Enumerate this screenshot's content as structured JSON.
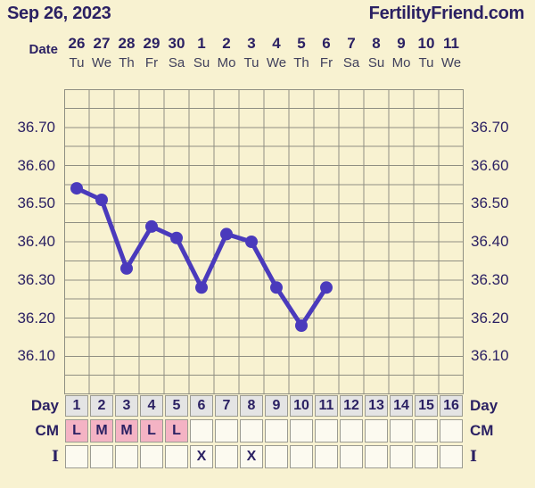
{
  "header": {
    "date": "Sep 26, 2023",
    "brand": "FertilityFriend.com"
  },
  "date_row": {
    "label": "Date",
    "dates": [
      "26",
      "27",
      "28",
      "29",
      "30",
      "1",
      "2",
      "3",
      "4",
      "5",
      "6",
      "7",
      "8",
      "9",
      "10",
      "11"
    ],
    "weekdays": [
      "Tu",
      "We",
      "Th",
      "Fr",
      "Sa",
      "Su",
      "Mo",
      "Tu",
      "We",
      "Th",
      "Fr",
      "Sa",
      "Su",
      "Mo",
      "Tu",
      "We"
    ]
  },
  "chart_data": {
    "type": "line",
    "x": [
      1,
      2,
      3,
      4,
      5,
      6,
      7,
      8,
      9,
      10,
      11
    ],
    "values": [
      36.54,
      36.51,
      36.33,
      36.44,
      36.41,
      36.28,
      36.42,
      36.4,
      36.28,
      36.18,
      36.28
    ],
    "xlabel": "Day",
    "ylabel": "",
    "ylim": [
      36.0,
      36.8
    ],
    "y_gridline_step": 0.05,
    "y_tick_labels": [
      "36.70",
      "36.60",
      "36.50",
      "36.40",
      "36.30",
      "36.20",
      "36.10"
    ],
    "x_columns": 16,
    "grid": true,
    "legend": "none",
    "marker": "circle"
  },
  "table": {
    "day": {
      "label": "Day",
      "values": [
        "1",
        "2",
        "3",
        "4",
        "5",
        "6",
        "7",
        "8",
        "9",
        "10",
        "11",
        "12",
        "13",
        "14",
        "15",
        "16"
      ]
    },
    "cm": {
      "label": "CM",
      "values": [
        "L",
        "M",
        "M",
        "L",
        "L",
        "",
        "",
        "",
        "",
        "",
        "",
        "",
        "",
        "",
        "",
        ""
      ]
    },
    "i": {
      "label": "I",
      "values": [
        "",
        "",
        "",
        "",
        "",
        "X",
        "",
        "X",
        "",
        "",
        "",
        "",
        "",
        "",
        "",
        ""
      ]
    }
  },
  "colors": {
    "background": "#f8f2d1",
    "text_navy": "#2b2163",
    "weekday_text": "#40405c",
    "grid_line": "#8f8f82",
    "line": "#4a3abc",
    "day_cell_bg": "#e4e4e4",
    "cm_highlight_bg": "#f4b3c4",
    "empty_cell_bg": "#fcfaf0",
    "cell_border": "#9b9b92"
  }
}
